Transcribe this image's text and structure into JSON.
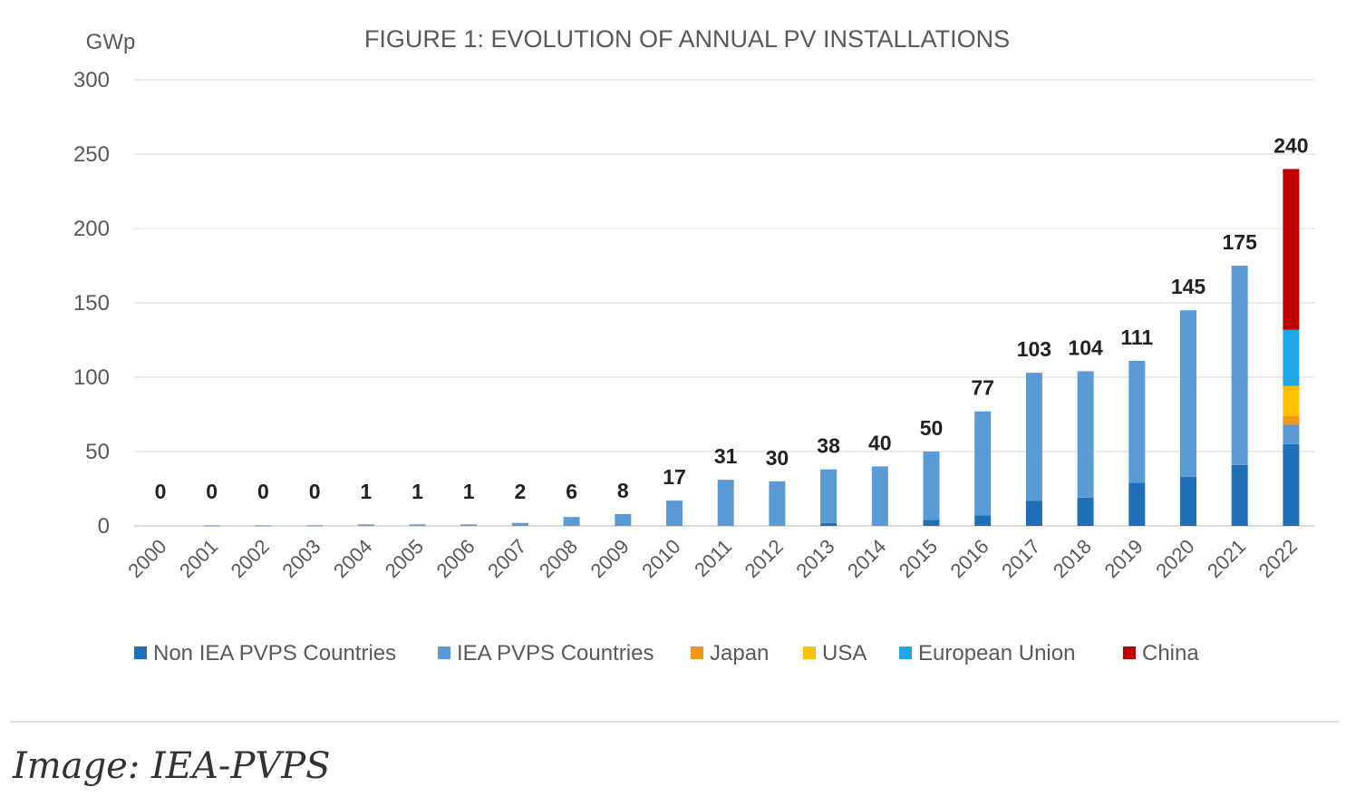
{
  "caption": "Image: IEA-PVPS",
  "chart_data": {
    "type": "bar",
    "stacked": true,
    "title": "FIGURE 1: EVOLUTION OF ANNUAL PV INSTALLATIONS",
    "ylabel": "GWp",
    "xlabel": "",
    "ylim": [
      0,
      300
    ],
    "yticks": [
      0,
      50,
      100,
      150,
      200,
      250,
      300
    ],
    "grid": true,
    "legend_position": "bottom",
    "categories": [
      "2000",
      "2001",
      "2002",
      "2003",
      "2004",
      "2005",
      "2006",
      "2007",
      "2008",
      "2009",
      "2010",
      "2011",
      "2012",
      "2013",
      "2014",
      "2015",
      "2016",
      "2017",
      "2018",
      "2019",
      "2020",
      "2021",
      "2022"
    ],
    "totals": [
      0,
      0,
      0,
      0,
      1,
      1,
      1,
      2,
      6,
      8,
      17,
      31,
      30,
      38,
      40,
      50,
      77,
      103,
      104,
      111,
      145,
      175,
      240
    ],
    "series": [
      {
        "name": "Non IEA PVPS Countries",
        "color": "#1f6fb8",
        "values": [
          0,
          0,
          0,
          0,
          0,
          0,
          0,
          0,
          0,
          0,
          0,
          0,
          0,
          2,
          0,
          4,
          7,
          17,
          19,
          29,
          33,
          41,
          55
        ]
      },
      {
        "name": "IEA PVPS Countries",
        "color": "#5b9bd5",
        "values": [
          0,
          0.3,
          0.3,
          0.4,
          1,
          1,
          1,
          2,
          6,
          8,
          17,
          31,
          30,
          36,
          40,
          46,
          70,
          86,
          85,
          82,
          112,
          134,
          13
        ]
      },
      {
        "name": "Japan",
        "color": "#f0971c",
        "values": [
          0,
          0,
          0,
          0,
          0,
          0,
          0,
          0,
          0,
          0,
          0,
          0,
          0,
          0,
          0,
          0,
          0,
          0,
          0,
          0,
          0,
          0,
          6
        ]
      },
      {
        "name": "USA",
        "color": "#ffc000",
        "values": [
          0,
          0,
          0,
          0,
          0,
          0,
          0,
          0,
          0,
          0,
          0,
          0,
          0,
          0,
          0,
          0,
          0,
          0,
          0,
          0,
          0,
          0,
          20
        ]
      },
      {
        "name": "European Union",
        "color": "#20a7e8",
        "values": [
          0,
          0,
          0,
          0,
          0,
          0,
          0,
          0,
          0,
          0,
          0,
          0,
          0,
          0,
          0,
          0,
          0,
          0,
          0,
          0,
          0,
          0,
          38
        ]
      },
      {
        "name": "China",
        "color": "#c00000",
        "values": [
          0,
          0,
          0,
          0,
          0,
          0,
          0,
          0,
          0,
          0,
          0,
          0,
          0,
          0,
          0,
          0,
          0,
          0,
          0,
          0,
          0,
          0,
          108
        ]
      }
    ]
  }
}
